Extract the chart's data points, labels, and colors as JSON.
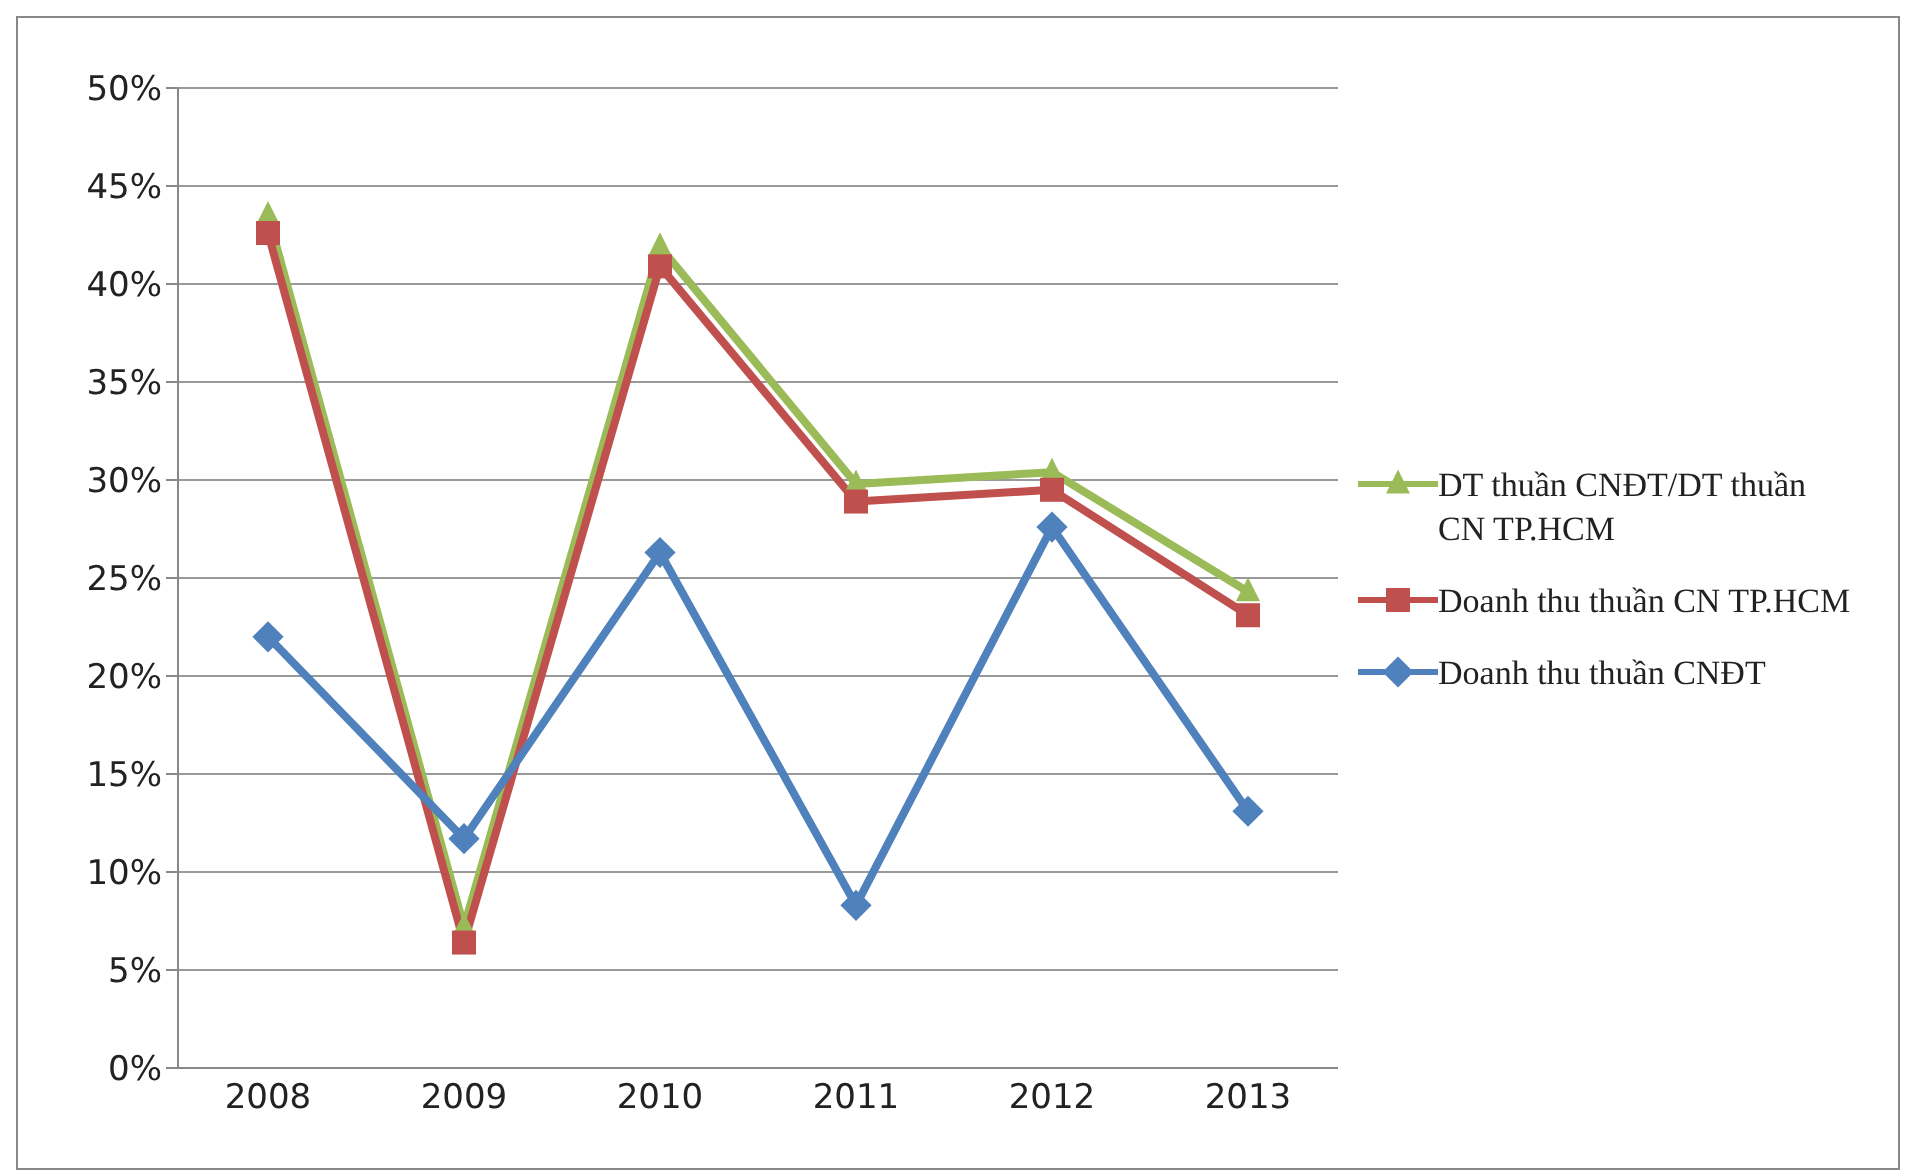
{
  "chart_data": {
    "type": "line",
    "categories": [
      "2008",
      "2009",
      "2010",
      "2011",
      "2012",
      "2013"
    ],
    "series": [
      {
        "name": "DT thuần CNĐT/DT thuần CN TP.HCM",
        "color": "#9bbb59",
        "marker": "triangle",
        "values": [
          43.5,
          7.2,
          41.9,
          29.8,
          30.4,
          24.3
        ]
      },
      {
        "name": "Doanh thu thuần CN TP.HCM",
        "color": "#c0504d",
        "marker": "square",
        "values": [
          42.6,
          6.4,
          40.9,
          28.9,
          29.5,
          23.1
        ]
      },
      {
        "name": "Doanh thu thuần CNĐT",
        "color": "#4f81bd",
        "marker": "diamond",
        "values": [
          22,
          11.7,
          26.3,
          8.3,
          27.6,
          13.1
        ]
      }
    ],
    "ylim": [
      0,
      50
    ],
    "yticks": [
      {
        "value": 0,
        "label": "0%"
      },
      {
        "value": 5,
        "label": "5%"
      },
      {
        "value": 10,
        "label": "10%"
      },
      {
        "value": 15,
        "label": "15%"
      },
      {
        "value": 20,
        "label": "20%"
      },
      {
        "value": 25,
        "label": "25%"
      },
      {
        "value": 30,
        "label": "30%"
      },
      {
        "value": 35,
        "label": "35%"
      },
      {
        "value": 40,
        "label": "40%"
      },
      {
        "value": 45,
        "label": "45%"
      },
      {
        "value": 50,
        "label": "50%"
      }
    ],
    "grid": "y",
    "legend": "right"
  }
}
